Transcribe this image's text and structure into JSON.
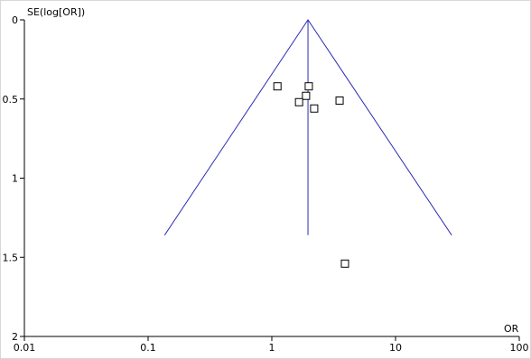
{
  "chart_data": {
    "type": "scatter",
    "xlabel": "OR",
    "ylabel": "SE(log[OR])",
    "xscale": "log",
    "y_inverted": true,
    "xlim": [
      0.01,
      100
    ],
    "xticks": [
      0.01,
      0.1,
      1,
      10,
      100
    ],
    "ylim": [
      0,
      2
    ],
    "yticks": [
      0,
      0.5,
      1,
      1.5,
      2
    ],
    "marker_color": "#000000",
    "line_color": "#2a2ab4",
    "x": [
      1.11,
      1.99,
      1.89,
      1.66,
      2.2,
      3.53,
      3.9
    ],
    "y": [
      0.42,
      0.42,
      0.48,
      0.52,
      0.56,
      0.51,
      1.54
    ],
    "funnel": {
      "x": [
        0.136,
        1.96,
        28.4
      ],
      "y": [
        1.36,
        0,
        1.36
      ]
    },
    "reference": {
      "x": [
        1.96,
        1.96
      ],
      "y": [
        0,
        1.36
      ]
    }
  }
}
